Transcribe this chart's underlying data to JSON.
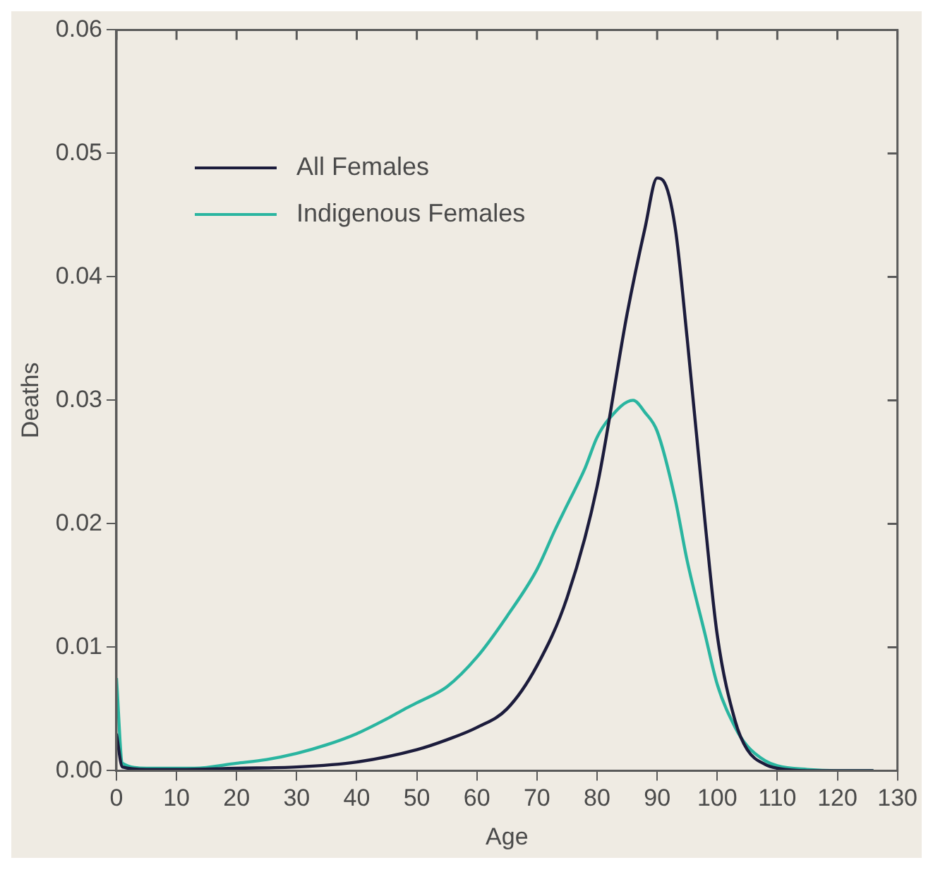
{
  "chart_data": {
    "type": "line",
    "xlabel": "Age",
    "ylabel": "Deaths",
    "xlim": [
      0,
      130
    ],
    "xticks": [
      0,
      10,
      20,
      30,
      40,
      50,
      60,
      70,
      80,
      90,
      100,
      110,
      120,
      130
    ],
    "ylim": [
      0,
      0.06
    ],
    "yticks": [
      {
        "value": 0,
        "label": "0.00"
      },
      0.01,
      0.02,
      0.03,
      0.04,
      0.05,
      0.06
    ],
    "legend": "top left",
    "grid": false,
    "marker": "none",
    "line_style": "solid",
    "series": [
      {
        "name": "All Females",
        "color": "#1c1c3c",
        "x": [
          0,
          1,
          5,
          10,
          20,
          30,
          40,
          50,
          55,
          60,
          65,
          70,
          75,
          80,
          85,
          88,
          90,
          91,
          93,
          95,
          98,
          100,
          103,
          105,
          108,
          110,
          115,
          126
        ],
        "values": [
          0.003,
          0.0003,
          0.0001,
          0.0001,
          0.0002,
          0.0003,
          0.0007,
          0.0017,
          0.0025,
          0.0035,
          0.005,
          0.0085,
          0.014,
          0.023,
          0.037,
          0.044,
          0.048,
          0.0478,
          0.044,
          0.035,
          0.02,
          0.011,
          0.004,
          0.0017,
          0.0005,
          0.0002,
          0,
          0
        ]
      },
      {
        "name": "Indigenous Females",
        "color": "#2ab5a0",
        "x": [
          0,
          1,
          5,
          10,
          13,
          20,
          25,
          30,
          35,
          40,
          45,
          48,
          50,
          55,
          60,
          65,
          70,
          73,
          75,
          78,
          80,
          82,
          86,
          88,
          90,
          93,
          95,
          98,
          100,
          103,
          105,
          108,
          110,
          115,
          120,
          126
        ],
        "values": [
          0.0075,
          0.0006,
          0.0002,
          0.0002,
          0.0002,
          0.0006,
          0.0009,
          0.0014,
          0.0021,
          0.003,
          0.0042,
          0.005,
          0.0055,
          0.0068,
          0.0092,
          0.0125,
          0.0163,
          0.0195,
          0.0215,
          0.0245,
          0.027,
          0.0285,
          0.03,
          0.029,
          0.0275,
          0.022,
          0.017,
          0.011,
          0.007,
          0.0035,
          0.002,
          0.0008,
          0.0004,
          0.0001,
          0,
          0
        ]
      }
    ]
  }
}
